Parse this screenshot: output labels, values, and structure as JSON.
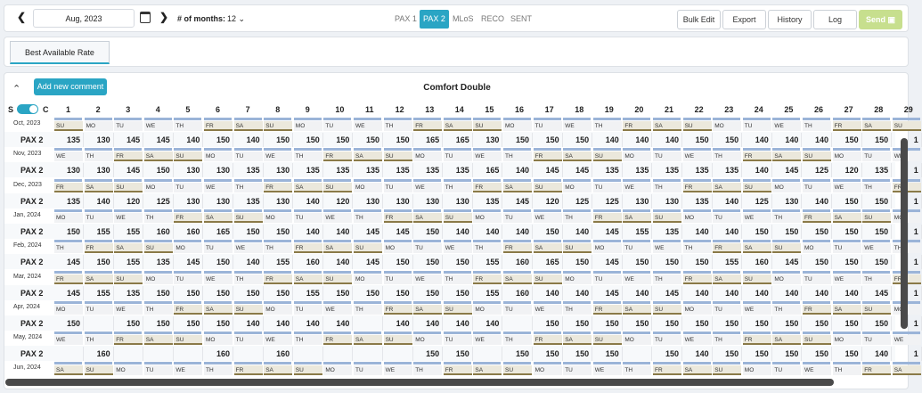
{
  "toolbar": {
    "date": "Aug, 2023",
    "months_label": "# of months:",
    "months_value": "12",
    "segments": [
      "PAX 1",
      "PAX 2",
      "MLoS",
      "RECO",
      "SENT"
    ],
    "active_segment": "PAX 2",
    "buttons": [
      "Bulk Edit",
      "Export",
      "History",
      "Log",
      "Send"
    ]
  },
  "tabs": {
    "active": "Best Available Rate"
  },
  "panel": {
    "add_comment": "Add new comment",
    "title": "Comfort Double",
    "toggle_left": "S",
    "toggle_right": "C",
    "days": [
      "1",
      "2",
      "3",
      "4",
      "5",
      "6",
      "7",
      "8",
      "9",
      "10",
      "11",
      "12",
      "13",
      "14",
      "15",
      "16",
      "17",
      "18",
      "19",
      "20",
      "21",
      "22",
      "23",
      "24",
      "25",
      "26",
      "27",
      "28",
      "29"
    ],
    "rows": [
      {
        "month": "Oct, 2023",
        "pax": "PAX 2",
        "wd": [
          "SU",
          "MO",
          "TU",
          "WE",
          "TH",
          "FR",
          "SA",
          "SU",
          "MO",
          "TU",
          "WE",
          "TH",
          "FR",
          "SA",
          "SU",
          "MO",
          "TU",
          "WE",
          "TH",
          "FR",
          "SA",
          "SU",
          "MO",
          "TU",
          "WE",
          "TH",
          "FR",
          "SA",
          "SU"
        ],
        "prices": [
          "135",
          "130",
          "145",
          "145",
          "140",
          "150",
          "140",
          "150",
          "150",
          "150",
          "150",
          "150",
          "165",
          "165",
          "130",
          "150",
          "150",
          "150",
          "140",
          "140",
          "140",
          "150",
          "150",
          "140",
          "140",
          "140",
          "150",
          "150",
          "1"
        ]
      },
      {
        "month": "Nov, 2023",
        "pax": "PAX 2",
        "wd": [
          "WE",
          "TH",
          "FR",
          "SA",
          "SU",
          "MO",
          "TU",
          "WE",
          "TH",
          "FR",
          "SA",
          "SU",
          "MO",
          "TU",
          "WE",
          "TH",
          "FR",
          "SA",
          "SU",
          "MO",
          "TU",
          "WE",
          "TH",
          "FR",
          "SA",
          "SU",
          "MO",
          "TU",
          "WE"
        ],
        "prices": [
          "130",
          "130",
          "145",
          "150",
          "130",
          "130",
          "135",
          "130",
          "135",
          "135",
          "135",
          "135",
          "135",
          "135",
          "165",
          "140",
          "145",
          "145",
          "135",
          "135",
          "135",
          "135",
          "135",
          "140",
          "145",
          "125",
          "120",
          "135",
          "1"
        ]
      },
      {
        "month": "Dec, 2023",
        "pax": "PAX 2",
        "wd": [
          "FR",
          "SA",
          "SU",
          "MO",
          "TU",
          "WE",
          "TH",
          "FR",
          "SA",
          "SU",
          "MO",
          "TU",
          "WE",
          "TH",
          "FR",
          "SA",
          "SU",
          "MO",
          "TU",
          "WE",
          "TH",
          "FR",
          "SA",
          "SU",
          "MO",
          "TU",
          "WE",
          "TH",
          "FR"
        ],
        "prices": [
          "135",
          "140",
          "120",
          "125",
          "130",
          "130",
          "135",
          "130",
          "140",
          "120",
          "130",
          "130",
          "130",
          "130",
          "135",
          "145",
          "120",
          "125",
          "125",
          "130",
          "130",
          "135",
          "140",
          "125",
          "130",
          "140",
          "150",
          "150",
          "1"
        ]
      },
      {
        "month": "Jan, 2024",
        "pax": "PAX 2",
        "wd": [
          "MO",
          "TU",
          "WE",
          "TH",
          "FR",
          "SA",
          "SU",
          "MO",
          "TU",
          "WE",
          "TH",
          "FR",
          "SA",
          "SU",
          "MO",
          "TU",
          "WE",
          "TH",
          "FR",
          "SA",
          "SU",
          "MO",
          "TU",
          "WE",
          "TH",
          "FR",
          "SA",
          "SU",
          "MO"
        ],
        "prices": [
          "150",
          "155",
          "155",
          "160",
          "160",
          "165",
          "150",
          "150",
          "140",
          "140",
          "145",
          "145",
          "150",
          "140",
          "140",
          "140",
          "150",
          "140",
          "145",
          "155",
          "135",
          "140",
          "140",
          "150",
          "150",
          "150",
          "150",
          "150",
          "1"
        ]
      },
      {
        "month": "Feb, 2024",
        "pax": "PAX 2",
        "wd": [
          "TH",
          "FR",
          "SA",
          "SU",
          "MO",
          "TU",
          "WE",
          "TH",
          "FR",
          "SA",
          "SU",
          "MO",
          "TU",
          "WE",
          "TH",
          "FR",
          "SA",
          "SU",
          "MO",
          "TU",
          "WE",
          "TH",
          "FR",
          "SA",
          "SU",
          "MO",
          "TU",
          "WE",
          "TH"
        ],
        "prices": [
          "145",
          "150",
          "155",
          "135",
          "145",
          "150",
          "140",
          "155",
          "160",
          "140",
          "145",
          "150",
          "150",
          "150",
          "155",
          "160",
          "165",
          "150",
          "145",
          "150",
          "150",
          "150",
          "155",
          "160",
          "145",
          "150",
          "150",
          "150",
          "1"
        ]
      },
      {
        "month": "Mar, 2024",
        "pax": "PAX 2",
        "wd": [
          "FR",
          "SA",
          "SU",
          "MO",
          "TU",
          "WE",
          "TH",
          "FR",
          "SA",
          "SU",
          "MO",
          "TU",
          "WE",
          "TH",
          "FR",
          "SA",
          "SU",
          "MO",
          "TU",
          "WE",
          "TH",
          "FR",
          "SA",
          "SU",
          "MO",
          "TU",
          "WE",
          "TH",
          "FR"
        ],
        "prices": [
          "145",
          "155",
          "135",
          "150",
          "150",
          "150",
          "150",
          "150",
          "155",
          "150",
          "150",
          "150",
          "150",
          "150",
          "155",
          "160",
          "140",
          "140",
          "145",
          "140",
          "145",
          "140",
          "140",
          "140",
          "140",
          "140",
          "140",
          "145",
          "1"
        ]
      },
      {
        "month": "Apr, 2024",
        "pax": "PAX 2",
        "wd": [
          "MO",
          "TU",
          "WE",
          "TH",
          "FR",
          "SA",
          "SU",
          "MO",
          "TU",
          "WE",
          "TH",
          "FR",
          "SA",
          "SU",
          "MO",
          "TU",
          "WE",
          "TH",
          "FR",
          "SA",
          "SU",
          "MO",
          "TU",
          "WE",
          "TH",
          "FR",
          "SA",
          "SU",
          "MO"
        ],
        "prices": [
          "150",
          "",
          "150",
          "150",
          "150",
          "150",
          "140",
          "140",
          "140",
          "140",
          "",
          "140",
          "140",
          "140",
          "140",
          "",
          "150",
          "150",
          "150",
          "150",
          "150",
          "150",
          "150",
          "150",
          "150",
          "150",
          "150",
          "150",
          "1"
        ]
      },
      {
        "month": "May, 2024",
        "pax": "PAX 2",
        "wd": [
          "WE",
          "TH",
          "FR",
          "SA",
          "SU",
          "MO",
          "TU",
          "WE",
          "TH",
          "FR",
          "SA",
          "SU",
          "MO",
          "TU",
          "WE",
          "TH",
          "FR",
          "SA",
          "SU",
          "MO",
          "TU",
          "WE",
          "TH",
          "FR",
          "SA",
          "SU",
          "MO",
          "TU",
          "WE"
        ],
        "prices": [
          "",
          "160",
          "",
          "",
          "",
          "160",
          "",
          "160",
          "",
          "",
          "",
          "",
          "150",
          "150",
          "",
          "150",
          "150",
          "150",
          "150",
          "",
          "150",
          "140",
          "150",
          "150",
          "150",
          "150",
          "150",
          "140",
          "1"
        ]
      },
      {
        "month": "Jun, 2024",
        "pax": "",
        "wd": [
          "SA",
          "SU",
          "MO",
          "TU",
          "WE",
          "TH",
          "FR",
          "SA",
          "SU",
          "MO",
          "TU",
          "WE",
          "TH",
          "FR",
          "SA",
          "SU",
          "MO",
          "TU",
          "WE",
          "TH",
          "FR",
          "SA",
          "SU",
          "MO",
          "TU",
          "WE",
          "TH",
          "FR",
          "SA"
        ],
        "prices": []
      }
    ]
  }
}
